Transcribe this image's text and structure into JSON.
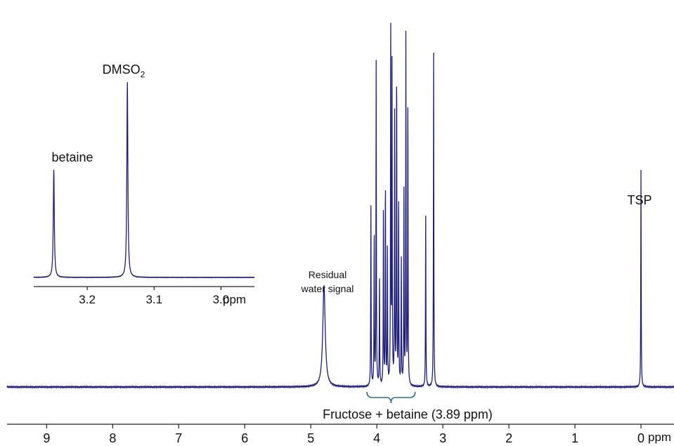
{
  "colors": {
    "spectrum": "#1f1f7a",
    "axis": "#222222",
    "bracket": "#2f6e8a",
    "text": "#111111"
  },
  "chart_data": [
    {
      "type": "line",
      "title": "",
      "xlabel": "ppm",
      "xaxis_reversed": true,
      "xlim": [
        -0.5,
        9.6
      ],
      "xticks": [
        9,
        8,
        7,
        6,
        5,
        4,
        3,
        2,
        1,
        0
      ],
      "grid": false,
      "peaks": [
        {
          "x": 4.8,
          "y": 27,
          "kind": "broad"
        },
        {
          "x": 4.09,
          "y": 48
        },
        {
          "x": 4.04,
          "y": 41
        },
        {
          "x": 4.01,
          "y": 86
        },
        {
          "x": 3.96,
          "y": 29
        },
        {
          "x": 3.9,
          "y": 48
        },
        {
          "x": 3.87,
          "y": 56
        },
        {
          "x": 3.84,
          "y": 36
        },
        {
          "x": 3.79,
          "y": 100
        },
        {
          "x": 3.77,
          "y": 85
        },
        {
          "x": 3.73,
          "y": 73
        },
        {
          "x": 3.7,
          "y": 87
        },
        {
          "x": 3.67,
          "y": 49
        },
        {
          "x": 3.63,
          "y": 34
        },
        {
          "x": 3.59,
          "y": 52
        },
        {
          "x": 3.56,
          "y": 93
        },
        {
          "x": 3.53,
          "y": 78
        },
        {
          "x": 3.26,
          "y": 46
        },
        {
          "x": 3.14,
          "y": 89
        },
        {
          "x": 0.0,
          "y": 58
        }
      ],
      "annotations": {
        "water_line1": "Residual",
        "water_line2": "water signal",
        "fructose": "Fructose + betaine (3.89 ppm)",
        "tsp": "TSP"
      }
    },
    {
      "type": "line",
      "title": "",
      "xlabel": "ppm",
      "xaxis_reversed": true,
      "xlim": [
        2.95,
        3.28
      ],
      "xticks": [
        3.2,
        3.1,
        3.0
      ],
      "xticklabels": [
        "3.2",
        "3.1",
        "3.0"
      ],
      "grid": false,
      "peaks": [
        {
          "x": 3.25,
          "y": 55
        },
        {
          "x": 3.14,
          "y": 100
        }
      ],
      "annotations": {
        "betaine": "betaine",
        "dmso_base": "DMSO",
        "dmso_sub": "2"
      }
    }
  ]
}
